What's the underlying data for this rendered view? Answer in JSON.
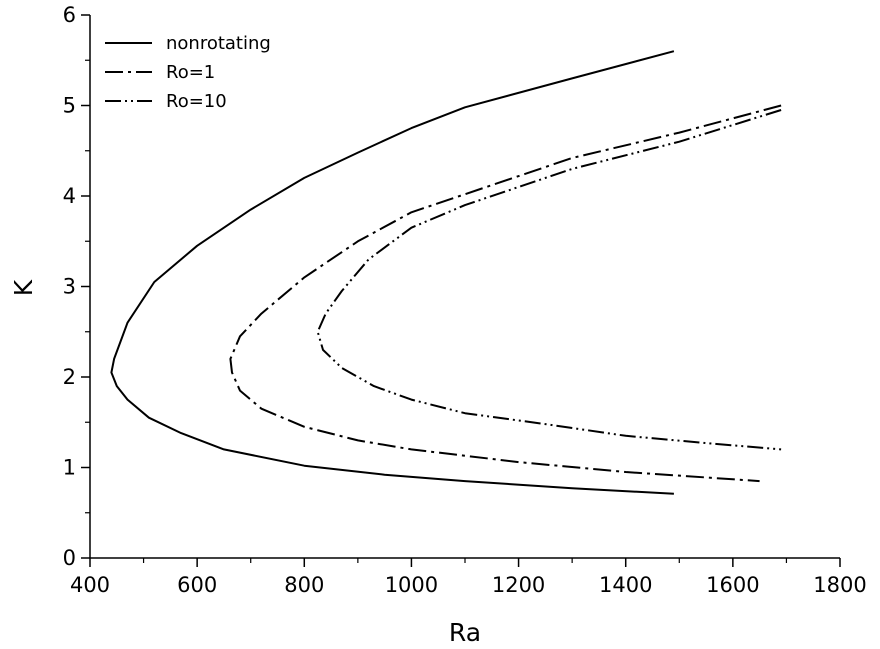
{
  "chart_data": {
    "type": "line",
    "title": "",
    "xlabel": "Ra",
    "ylabel": "K",
    "xlim": [
      400,
      1800
    ],
    "ylim": [
      0,
      6
    ],
    "x_ticks": [
      400,
      600,
      800,
      1000,
      1200,
      1400,
      1600,
      1800
    ],
    "y_ticks": [
      0,
      1,
      2,
      3,
      4,
      5,
      6
    ],
    "grid": false,
    "legend_position": "top-left",
    "series": [
      {
        "name": "nonrotating",
        "style": "solid",
        "points": [
          [
            1490,
            5.6
          ],
          [
            1300,
            5.3
          ],
          [
            1100,
            4.98
          ],
          [
            1000,
            4.75
          ],
          [
            900,
            4.48
          ],
          [
            800,
            4.2
          ],
          [
            700,
            3.85
          ],
          [
            600,
            3.45
          ],
          [
            520,
            3.05
          ],
          [
            470,
            2.6
          ],
          [
            445,
            2.2
          ],
          [
            440,
            2.05
          ],
          [
            450,
            1.9
          ],
          [
            470,
            1.75
          ],
          [
            510,
            1.55
          ],
          [
            570,
            1.38
          ],
          [
            650,
            1.2
          ],
          [
            800,
            1.02
          ],
          [
            950,
            0.92
          ],
          [
            1100,
            0.85
          ],
          [
            1300,
            0.77
          ],
          [
            1490,
            0.71
          ]
        ]
      },
      {
        "name": "Ro=1",
        "style": "dashdot",
        "points": [
          [
            1690,
            5.0
          ],
          [
            1500,
            4.7
          ],
          [
            1300,
            4.42
          ],
          [
            1100,
            4.02
          ],
          [
            1000,
            3.82
          ],
          [
            900,
            3.5
          ],
          [
            800,
            3.1
          ],
          [
            720,
            2.7
          ],
          [
            680,
            2.45
          ],
          [
            662,
            2.2
          ],
          [
            665,
            2.05
          ],
          [
            680,
            1.85
          ],
          [
            720,
            1.65
          ],
          [
            800,
            1.45
          ],
          [
            900,
            1.3
          ],
          [
            1000,
            1.2
          ],
          [
            1200,
            1.06
          ],
          [
            1400,
            0.95
          ],
          [
            1650,
            0.85
          ]
        ]
      },
      {
        "name": "Ro=10",
        "style": "dashdotdot",
        "points": [
          [
            1690,
            4.95
          ],
          [
            1500,
            4.6
          ],
          [
            1300,
            4.3
          ],
          [
            1100,
            3.9
          ],
          [
            1000,
            3.65
          ],
          [
            920,
            3.3
          ],
          [
            870,
            2.95
          ],
          [
            840,
            2.7
          ],
          [
            825,
            2.5
          ],
          [
            835,
            2.3
          ],
          [
            870,
            2.1
          ],
          [
            930,
            1.9
          ],
          [
            1000,
            1.75
          ],
          [
            1100,
            1.6
          ],
          [
            1250,
            1.48
          ],
          [
            1400,
            1.35
          ],
          [
            1550,
            1.27
          ],
          [
            1690,
            1.2
          ]
        ]
      }
    ]
  }
}
